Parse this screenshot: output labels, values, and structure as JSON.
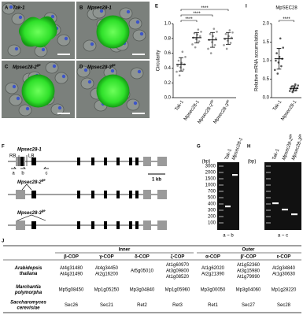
{
  "micrographs": [
    {
      "letter": "A",
      "label": "Tak-1"
    },
    {
      "letter": "B",
      "label": "Mpsec28-1"
    },
    {
      "letter": "C",
      "label": "Mpsec28-2",
      "label_sup": "ge"
    },
    {
      "letter": "D",
      "label": "Mpsec28-3",
      "label_sup": "ge"
    }
  ],
  "chart_data": [
    {
      "type": "scatter",
      "letter": "E",
      "ylabel": "Circularity",
      "categories": [
        "Tak-1",
        "Mpsec28-1",
        "Mpsec28-2",
        "Mpsec28-3"
      ],
      "category_superscripts": [
        null,
        null,
        "ge",
        "ge"
      ],
      "points": [
        [
          0.3,
          0.35,
          0.38,
          0.41,
          0.43,
          0.45,
          0.47,
          0.5,
          0.55,
          0.62
        ],
        [
          0.68,
          0.72,
          0.76,
          0.79,
          0.81,
          0.83,
          0.85,
          0.87,
          0.89,
          0.92
        ],
        [
          0.6,
          0.66,
          0.71,
          0.75,
          0.78,
          0.8,
          0.83,
          0.86,
          0.89,
          0.93
        ],
        [
          0.66,
          0.71,
          0.74,
          0.77,
          0.79,
          0.81,
          0.83,
          0.86,
          0.88,
          0.91
        ]
      ],
      "means": [
        0.45,
        0.81,
        0.78,
        0.8
      ],
      "sd": [
        0.09,
        0.07,
        0.1,
        0.08
      ],
      "point_color": "#9a9a9a",
      "ylim": [
        0,
        1
      ],
      "yticks": [
        {
          "value": 0,
          "label": "0.0"
        },
        0.2,
        0.4,
        0.6,
        0.8,
        {
          "value": 1,
          "label": "1.0"
        }
      ],
      "significance": [
        "****",
        "****",
        "****"
      ]
    },
    {
      "type": "scatter",
      "letter": "I",
      "title": "MpSEC28",
      "ylabel": "Relative mRNA accumulation",
      "categories": [
        "Tak-1",
        "Mpsec28-1"
      ],
      "points": [
        [
          0.65,
          0.75,
          0.85,
          0.95,
          1.0,
          1.05,
          1.1,
          1.2,
          1.35,
          1.6
        ],
        [
          0.15,
          0.18,
          0.2,
          0.22,
          0.24,
          0.26,
          0.28,
          0.3,
          0.33,
          0.36
        ]
      ],
      "means": [
        1.05,
        0.25
      ],
      "sd": [
        0.28,
        0.07
      ],
      "point_color": "#555555",
      "ylim": [
        0,
        2
      ],
      "yticks": [
        {
          "value": 0,
          "label": "0.0"
        },
        0.5,
        {
          "value": 1,
          "label": "1.0"
        },
        1.5,
        {
          "value": 2,
          "label": "2.0"
        }
      ],
      "significance": [
        "****"
      ]
    }
  ],
  "gene_diagram": {
    "letter": "F",
    "alleles": [
      {
        "label": "Mpsec28-1"
      },
      {
        "label": "Mpsec28-2",
        "label_sup": "ge"
      },
      {
        "label": "Mpsec28-3",
        "label_sup": "ge"
      }
    ],
    "border_labels": [
      "RB",
      "LB"
    ],
    "primers": [
      "a",
      "b",
      "c"
    ],
    "scale": "1 kb"
  },
  "gels": [
    {
      "letter": "G",
      "lanes": [
        {
          "label": "Tak-1"
        },
        {
          "label": "Mpsec28-1"
        }
      ],
      "unit": "(bp)",
      "ladder": [
        "3000",
        "2000",
        "1500",
        "1000",
        "700",
        "500",
        "400",
        "300",
        "200",
        "100"
      ],
      "primers": "a ~ b"
    },
    {
      "letter": "H",
      "lanes": [
        {
          "label": "Tak-1"
        },
        {
          "label": "Mpsec28-2",
          "label_sup": "ge"
        },
        {
          "label": "Mpsec28-3",
          "label_sup": "ge"
        }
      ],
      "unit": "(bp)",
      "primers": "a ~ c"
    }
  ],
  "table": {
    "letter": "J",
    "groups": [
      "Inner",
      "Outer"
    ],
    "columns": [
      "β-COP",
      "γ-COP",
      "δ-COP",
      "ζ-COP",
      "α-COP",
      "β'-COP",
      "ε-COP"
    ],
    "rows": [
      {
        "species": [
          "Arabidopsis",
          "thaliana"
        ],
        "cells": [
          [
            "At4g31480",
            "At4g31490"
          ],
          [
            "At4g34450",
            "At2g16200"
          ],
          [
            "At5g05010"
          ],
          [
            "At1g60970",
            "At3g09800",
            "At1g08520"
          ],
          [
            "At1g62020",
            "At2g21390"
          ],
          [
            "At1g52360",
            "At3g15980",
            "At1g79990"
          ],
          [
            "At2g34840",
            "At1g30630"
          ]
        ]
      },
      {
        "species": [
          "Marchantia",
          "polymorpha"
        ],
        "cells": [
          [
            "Mp5g08450"
          ],
          [
            "Mp1g05250"
          ],
          [
            "Mp3g04840"
          ],
          [
            "Mp1g05960"
          ],
          [
            "Mp3g00050"
          ],
          [
            "Mp3g04060"
          ],
          [
            "Mp1g28220"
          ]
        ]
      },
      {
        "species": [
          "Saccharomyces",
          "cerevisiae"
        ],
        "cells": [
          [
            "Sec26"
          ],
          [
            "Sec21"
          ],
          [
            "Ret2"
          ],
          [
            "Ret3"
          ],
          [
            "Ret1"
          ],
          [
            "Sec27"
          ],
          [
            "Sec28"
          ]
        ]
      }
    ]
  }
}
